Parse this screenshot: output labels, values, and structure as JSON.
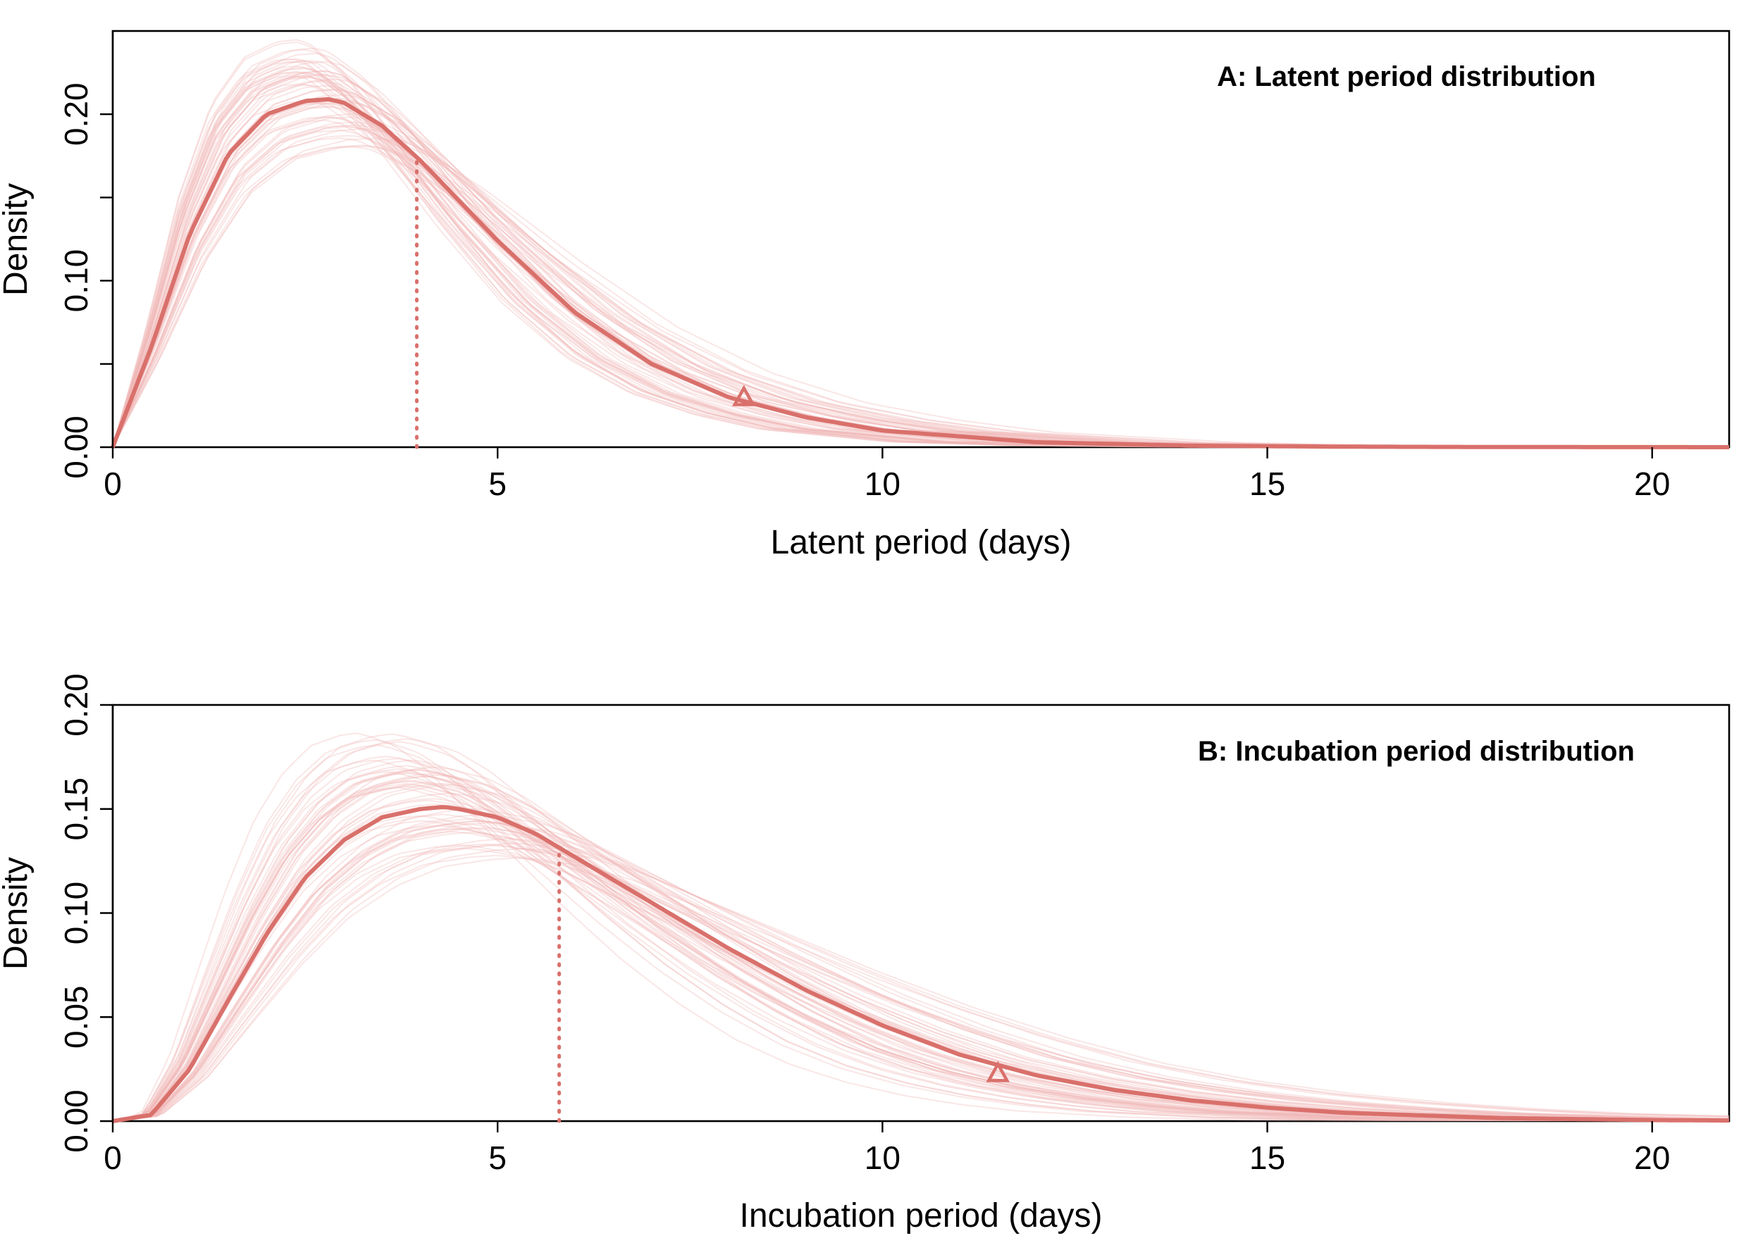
{
  "colors": {
    "main_curve": "#d9706b",
    "sample_curves": "#f2b8b8"
  },
  "chart_data": [
    {
      "type": "line",
      "title": "A: Latent period distribution",
      "xlabel": "Latent period (days)",
      "ylabel": "Density",
      "xlim": [
        0,
        21
      ],
      "ylim": [
        0,
        0.25
      ],
      "xticks": [
        "0",
        "5",
        "10",
        "15",
        "20"
      ],
      "yticks": [
        "0.00",
        "0.10",
        "0.20"
      ],
      "yticks_unlabeled": [
        0.05,
        0.15
      ],
      "grid": false,
      "series": [
        {
          "x": [
            0,
            0.5,
            1,
            1.5,
            2,
            2.5,
            2.8,
            3,
            3.5,
            4,
            4.5,
            5,
            6,
            7,
            8,
            9,
            10,
            12,
            14,
            16,
            18,
            20,
            21
          ],
          "values": [
            0,
            0.06,
            0.128,
            0.176,
            0.2,
            0.208,
            0.209,
            0.207,
            0.193,
            0.172,
            0.148,
            0.124,
            0.081,
            0.05,
            0.03,
            0.018,
            0.01,
            0.003,
            0.0009,
            0.0003,
            0.0001,
            3e-05,
            1e-05
          ]
        }
      ],
      "posterior_samples": {
        "count": 60,
        "peak_range": [
          0.18,
          0.245
        ]
      },
      "median_marker": {
        "x": 3.95,
        "y": 0.172,
        "style": "dotted vertical line"
      },
      "upper_quantile_marker": {
        "x": 8.2,
        "y": 0.03,
        "style": "open triangle"
      }
    },
    {
      "type": "line",
      "title": "B: Incubation period distribution",
      "xlabel": "Incubation period (days)",
      "ylabel": "Density",
      "xlim": [
        0,
        21
      ],
      "ylim": [
        0,
        0.2
      ],
      "xticks": [
        "0",
        "5",
        "10",
        "15",
        "20"
      ],
      "yticks": [
        "0.00",
        "0.05",
        "0.10",
        "0.15",
        "0.20"
      ],
      "grid": false,
      "series": [
        {
          "x": [
            0,
            0.5,
            1,
            1.5,
            2,
            2.5,
            3,
            3.5,
            4,
            4.3,
            4.5,
            5,
            5.5,
            6,
            7,
            8,
            9,
            10,
            11,
            12,
            13,
            14,
            15,
            16,
            18,
            20,
            21
          ],
          "values": [
            0,
            0.003,
            0.025,
            0.058,
            0.09,
            0.117,
            0.135,
            0.146,
            0.15,
            0.151,
            0.15,
            0.146,
            0.138,
            0.127,
            0.105,
            0.083,
            0.063,
            0.046,
            0.032,
            0.022,
            0.015,
            0.01,
            0.0065,
            0.004,
            0.0015,
            0.0005,
            0.0003
          ]
        }
      ],
      "posterior_samples": {
        "count": 60,
        "peak_range": [
          0.125,
          0.188
        ]
      },
      "median_marker": {
        "x": 5.8,
        "y": 0.128,
        "style": "dotted vertical line"
      },
      "upper_quantile_marker": {
        "x": 11.5,
        "y": 0.023,
        "style": "open triangle"
      }
    }
  ]
}
